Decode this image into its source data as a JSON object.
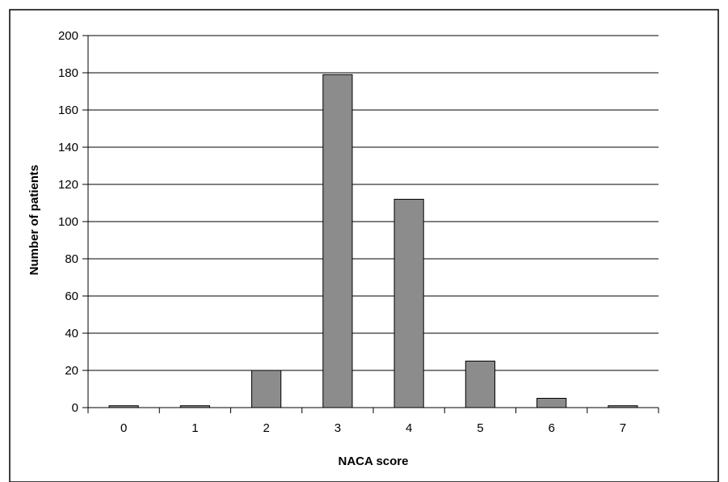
{
  "chart_data": {
    "type": "bar",
    "title": "",
    "xlabel": "NACA score",
    "ylabel": "Number of patients",
    "categories": [
      "0",
      "1",
      "2",
      "3",
      "4",
      "5",
      "6",
      "7"
    ],
    "values": [
      1,
      1,
      20,
      179,
      112,
      25,
      5,
      1
    ],
    "ylim": [
      0,
      200
    ],
    "yticks": [
      "0",
      "20",
      "40",
      "60",
      "80",
      "100",
      "120",
      "140",
      "160",
      "180",
      "200"
    ],
    "grid": "horizontal",
    "legend": "none",
    "bar_color": "#8c8c8c",
    "bar_edge_color": "#000000",
    "grid_color": "#000000",
    "border_color": "#000000"
  }
}
